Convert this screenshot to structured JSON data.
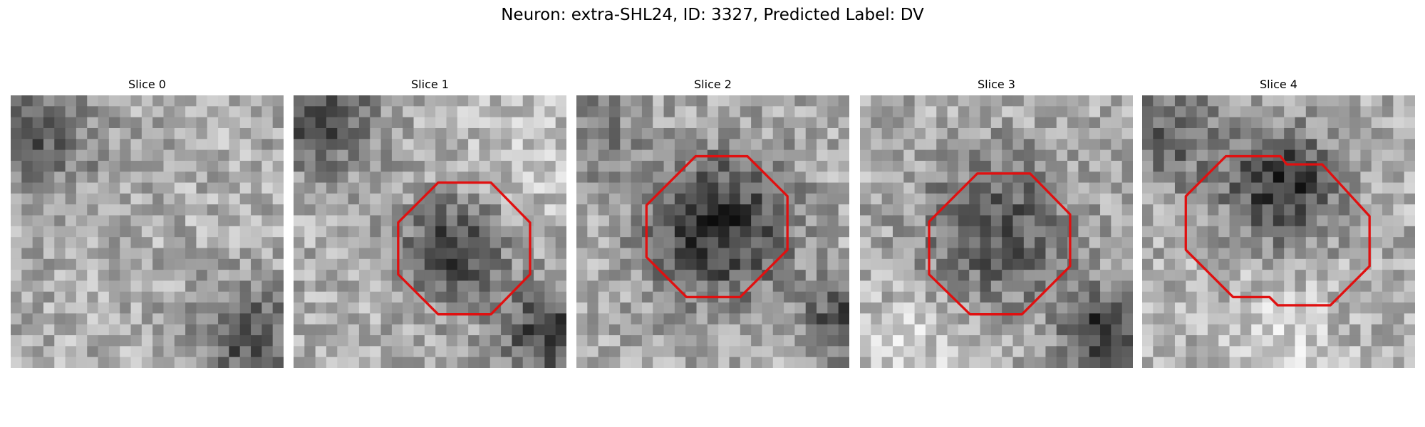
{
  "title": "Neuron: extra-SHL24, ID: 3327, Predicted Label: DV",
  "panels": [
    {
      "title": "Slice 0"
    },
    {
      "title": "Slice 1"
    },
    {
      "title": "Slice 2"
    },
    {
      "title": "Slice 3"
    },
    {
      "title": "Slice 4"
    }
  ]
}
